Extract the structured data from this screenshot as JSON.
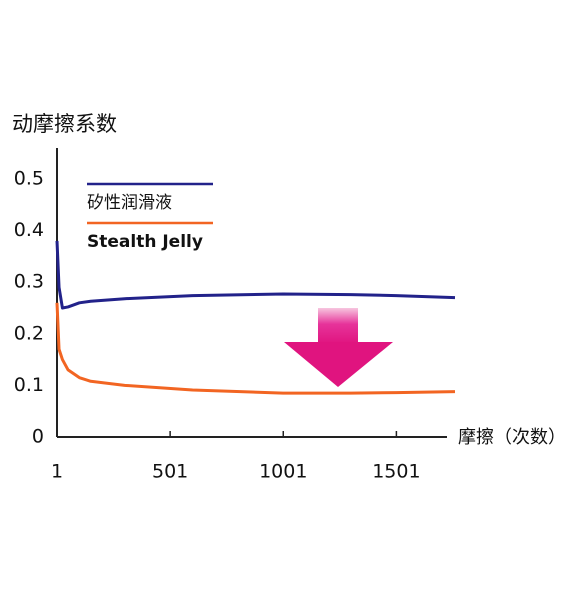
{
  "chart_data": {
    "type": "line",
    "y_axis_label": "动摩擦系数",
    "x_axis_label": "摩擦（次数）",
    "x": [
      1,
      10,
      25,
      50,
      100,
      150,
      300,
      600,
      1000,
      1300,
      1500,
      1760
    ],
    "series": [
      {
        "name": "矽性润滑液",
        "color": "#22228a",
        "values": [
          0.38,
          0.29,
          0.25,
          0.252,
          0.26,
          0.263,
          0.268,
          0.274,
          0.277,
          0.276,
          0.274,
          0.27
        ]
      },
      {
        "name": "Stealth Jelly",
        "color": "#f26522",
        "values": [
          0.26,
          0.17,
          0.15,
          0.13,
          0.115,
          0.108,
          0.1,
          0.091,
          0.085,
          0.085,
          0.086,
          0.088
        ]
      }
    ],
    "xlim": [
      1,
      1760
    ],
    "ylim": [
      0,
      0.56
    ],
    "xticks": [
      1,
      501,
      1001,
      1501
    ],
    "yticks": [
      0,
      0.1,
      0.2,
      0.3,
      0.4,
      0.5
    ]
  }
}
